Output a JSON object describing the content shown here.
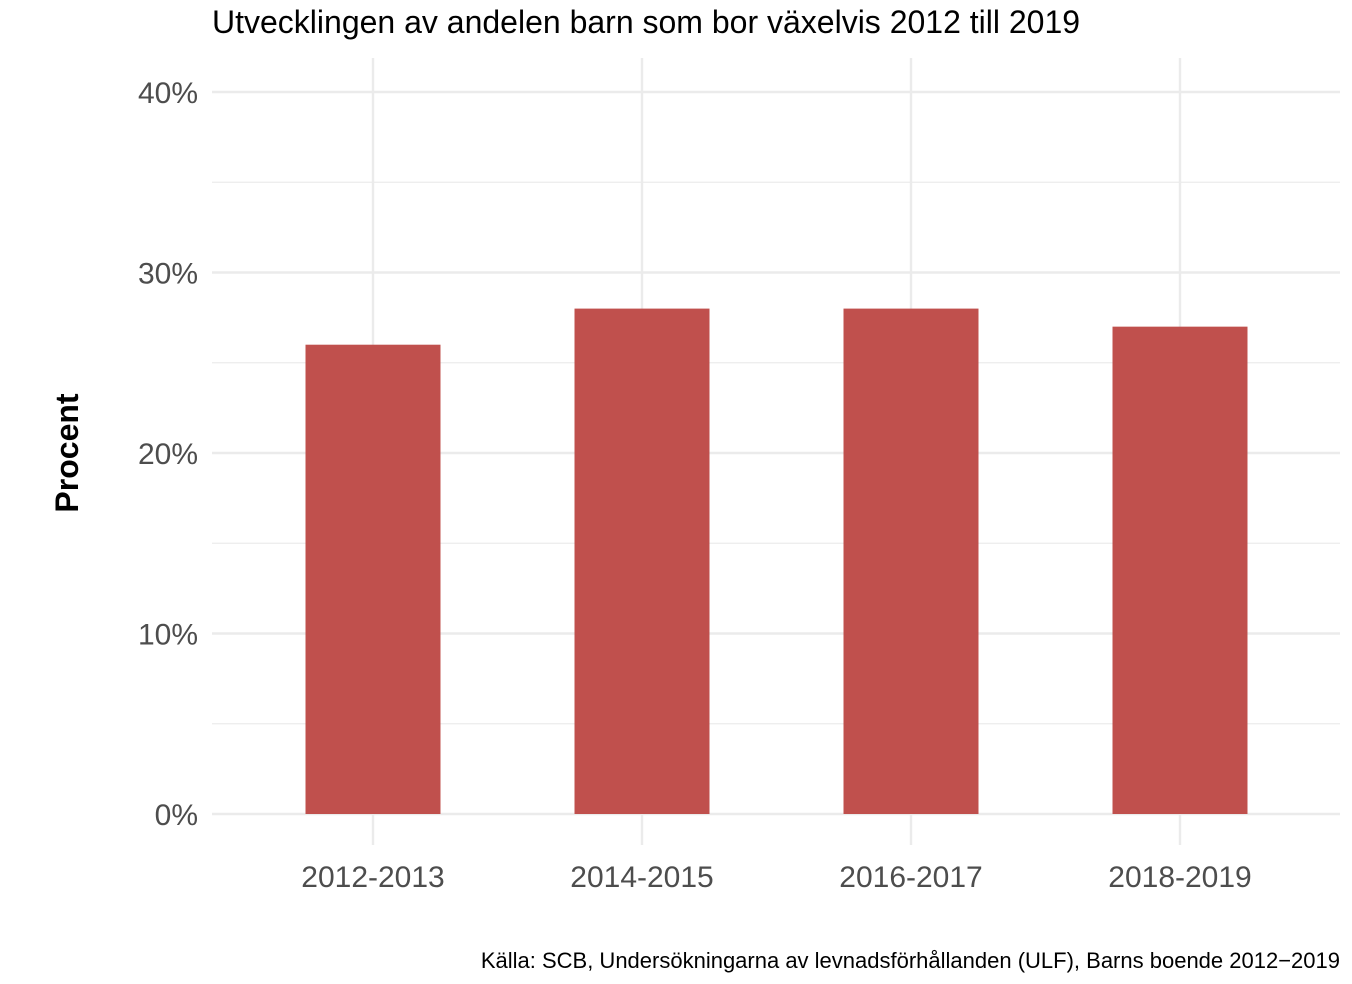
{
  "chart_data": {
    "type": "bar",
    "title": "Utvecklingen av andelen barn som bor växelvis 2012 till 2019",
    "xlabel": "",
    "ylabel": "Procent",
    "categories": [
      "2012-2013",
      "2014-2015",
      "2016-2017",
      "2018-2019"
    ],
    "values": [
      26,
      28,
      28,
      27
    ],
    "ylim": [
      0,
      42
    ],
    "yticks": [
      0,
      10,
      20,
      30,
      40
    ],
    "ytick_labels": [
      "0%",
      "10%",
      "20%",
      "30%",
      "40%"
    ],
    "caption": "Källa: SCB, Undersökningarna av levnadsförhållanden (ULF), Barns boende 2012−2019",
    "grid": true,
    "bar_color": "#C0504D",
    "grid_color": "#EBEBEB"
  }
}
